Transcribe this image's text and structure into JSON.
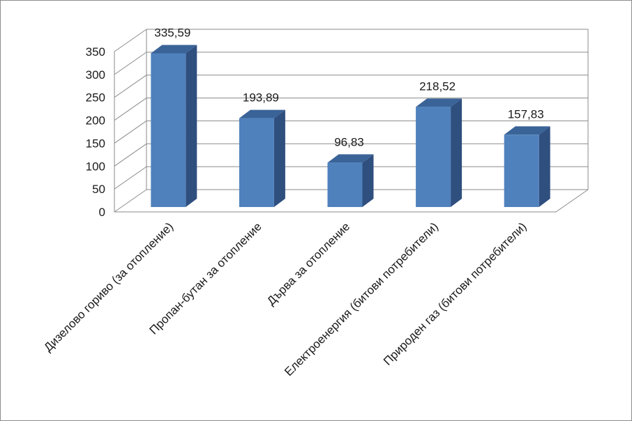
{
  "chart_data": {
    "type": "bar",
    "style": "3d-column",
    "categories": [
      "Дизелово гориво (за отопление)",
      "Пропан-бутан за отопление",
      "Дърва за отопление",
      "Електроенергия (битови потребители)",
      "Природен газ (битови потребители)"
    ],
    "values": [
      335.59,
      193.89,
      96.83,
      218.52,
      157.83
    ],
    "value_labels": [
      "335,59",
      "193,89",
      "96,83",
      "218,52",
      "157,83"
    ],
    "y_ticks": [
      "0",
      "50",
      "100",
      "150",
      "200",
      "250",
      "300",
      "350"
    ],
    "ylim": [
      0,
      350
    ],
    "ystep": 50,
    "grid": true,
    "legend": "none",
    "colors": {
      "front": "#4f81bd",
      "side": "#2f4f7f",
      "top": "#3a6398",
      "grid": "#8a8a8a"
    }
  }
}
